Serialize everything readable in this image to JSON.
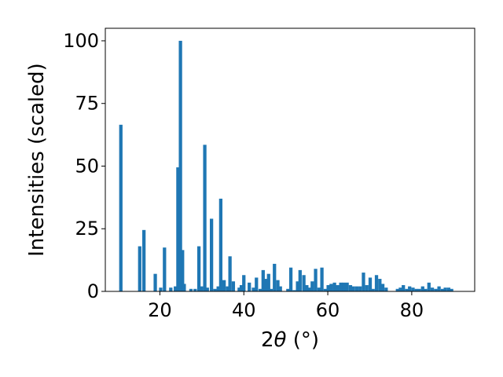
{
  "chart_data": {
    "type": "bar",
    "xlabel_prefix": "2",
    "xlabel_theta": "θ",
    "xlabel_suffix": " (°)",
    "ylabel": "Intensities (scaled)",
    "xlim": [
      7,
      95
    ],
    "ylim": [
      0,
      105
    ],
    "xticks": [
      20,
      40,
      60,
      80
    ],
    "yticks": [
      0,
      25,
      50,
      75,
      100
    ],
    "bar_width": 0.8,
    "color": "#1f77b4",
    "grid": false,
    "x": [
      10.7,
      15.2,
      16.2,
      18.9,
      20.2,
      21.1,
      22.6,
      23.7,
      24.3,
      24.9,
      25.4,
      25.8,
      27.4,
      28.4,
      29.3,
      29.9,
      30.7,
      31.3,
      32.3,
      33.1,
      33.9,
      34.5,
      35.3,
      36.1,
      36.7,
      37.5,
      38.9,
      39.4,
      40.0,
      41.3,
      42.3,
      43.0,
      43.9,
      44.6,
      45.2,
      45.9,
      46.5,
      47.3,
      48.1,
      48.7,
      50.5,
      51.2,
      52.0,
      52.8,
      53.4,
      54.3,
      55.0,
      55.6,
      56.3,
      57.1,
      57.9,
      58.6,
      59.4,
      60.1,
      60.8,
      61.6,
      62.3,
      63.1,
      63.8,
      64.6,
      65.4,
      66.1,
      66.9,
      67.7,
      68.5,
      69.3,
      70.1,
      70.8,
      71.6,
      72.4,
      73.1,
      73.9,
      76.6,
      77.3,
      78.0,
      78.8,
      79.5,
      80.3,
      81.1,
      81.8,
      82.6,
      83.3,
      84.1,
      84.9,
      85.7,
      86.5,
      87.3,
      88.0,
      88.8,
      89.5
    ],
    "values": [
      66.5,
      18,
      24.5,
      7,
      1.5,
      17.5,
      1.5,
      2,
      49.5,
      100,
      16.5,
      3,
      1,
      1,
      18,
      2,
      58.5,
      1.5,
      29,
      1,
      2,
      37,
      4.5,
      2,
      14,
      4,
      1.5,
      2.5,
      6.5,
      3.5,
      1.5,
      5.5,
      1,
      8.5,
      5,
      7,
      1,
      11,
      4.5,
      2,
      1,
      9.5,
      0.5,
      4,
      8.5,
      6.5,
      2.5,
      1.5,
      4,
      9,
      1.5,
      9.5,
      1,
      2.5,
      3,
      3.5,
      2.5,
      3.5,
      3.5,
      3.5,
      2.5,
      2,
      2,
      2,
      7.5,
      2.5,
      5.5,
      1,
      6.5,
      5,
      3,
      1.5,
      1,
      1.5,
      2.5,
      1,
      2,
      1.5,
      1,
      1,
      2,
      1,
      3.5,
      1.5,
      1,
      2,
      1,
      1.5,
      1.5,
      1
    ]
  }
}
